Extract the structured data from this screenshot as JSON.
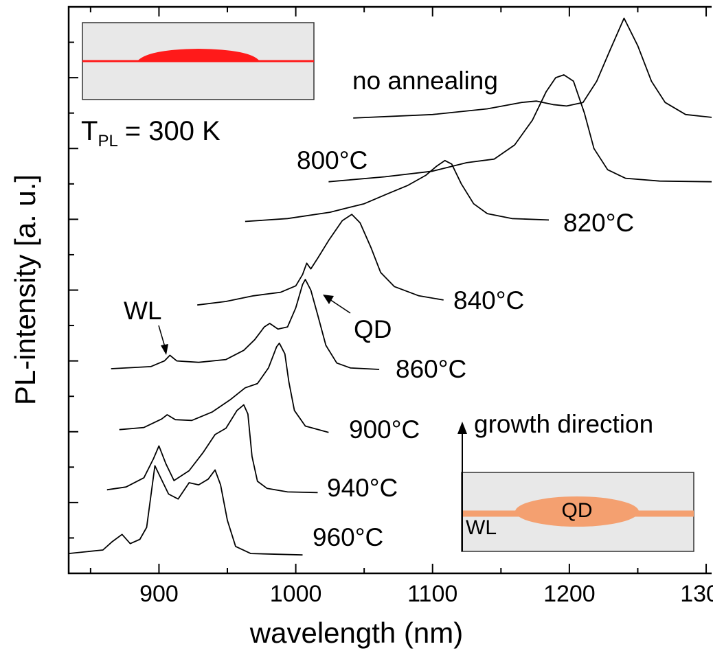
{
  "chart_data": {
    "type": "line",
    "x_label": "wavelength (nm)",
    "y_label": "PL-intensity [a. u.]",
    "xlim": [
      834,
      1304
    ],
    "ylim": [
      0,
      8
    ],
    "xticks": [
      900,
      1000,
      1100,
      1200,
      1300
    ],
    "xminor_ticks": [
      850,
      950,
      1050,
      1150,
      1250
    ],
    "yticks_unlabeled": [
      0,
      1,
      2,
      3,
      4,
      5,
      6,
      7,
      8
    ],
    "yminor_ticks": [
      0.5,
      1.5,
      2.5,
      3.5,
      4.5,
      5.5,
      6.5,
      7.5
    ],
    "line_color": "#000000",
    "series": [
      {
        "name": "no annealing",
        "x": [
          1042,
          1100,
          1140,
          1165,
          1176,
          1188,
          1198,
          1210,
          1220,
          1230,
          1240,
          1250,
          1260,
          1270,
          1285,
          1304
        ],
        "values": [
          6.43,
          6.48,
          6.56,
          6.65,
          6.67,
          6.62,
          6.6,
          6.65,
          6.95,
          7.4,
          7.84,
          7.45,
          6.95,
          6.65,
          6.48,
          6.44
        ]
      },
      {
        "name": "800°C",
        "x": [
          1024,
          1065,
          1100,
          1125,
          1145,
          1160,
          1173,
          1183,
          1190,
          1196,
          1203,
          1211,
          1218,
          1228,
          1241,
          1266,
          1304
        ],
        "values": [
          5.53,
          5.6,
          5.68,
          5.8,
          5.85,
          6.05,
          6.4,
          6.8,
          7.0,
          7.04,
          6.95,
          6.5,
          6.0,
          5.7,
          5.58,
          5.54,
          5.53
        ]
      },
      {
        "name": "820°C",
        "x": [
          963,
          994,
          1025,
          1050,
          1067,
          1082,
          1095,
          1103,
          1109,
          1114,
          1121,
          1130,
          1140,
          1158,
          1185
        ],
        "values": [
          4.97,
          5.01,
          5.1,
          5.22,
          5.36,
          5.48,
          5.62,
          5.75,
          5.83,
          5.78,
          5.5,
          5.22,
          5.08,
          5.01,
          4.99
        ]
      },
      {
        "name": "840°C",
        "x": [
          928,
          949,
          969,
          989,
          1000,
          1005,
          1008,
          1011,
          1016,
          1024,
          1034,
          1041,
          1047,
          1055,
          1062,
          1072,
          1090,
          1108
        ],
        "values": [
          3.79,
          3.84,
          3.92,
          3.97,
          4.06,
          4.22,
          4.38,
          4.3,
          4.45,
          4.7,
          4.98,
          5.07,
          4.95,
          4.6,
          4.25,
          4.05,
          3.92,
          3.86
        ]
      },
      {
        "name": "860°C",
        "x": [
          865,
          894,
          904,
          908,
          913,
          929,
          949,
          962,
          970,
          977,
          981,
          987,
          994,
          1000,
          1005,
          1007,
          1011,
          1016,
          1022,
          1030,
          1040,
          1061
        ],
        "values": [
          2.89,
          2.92,
          3.0,
          3.08,
          3.0,
          2.98,
          3.02,
          3.15,
          3.3,
          3.48,
          3.53,
          3.45,
          3.48,
          3.75,
          4.08,
          4.15,
          4.0,
          3.65,
          3.22,
          2.97,
          2.9,
          2.88
        ]
      },
      {
        "name": "900°C",
        "x": [
          871,
          889,
          902,
          906,
          912,
          924,
          939,
          952,
          963,
          972,
          980,
          986,
          988,
          992,
          995,
          999,
          1007,
          1024
        ],
        "values": [
          2.03,
          2.06,
          2.18,
          2.24,
          2.17,
          2.16,
          2.28,
          2.45,
          2.62,
          2.68,
          2.9,
          3.2,
          3.25,
          3.1,
          2.7,
          2.3,
          2.08,
          1.99
        ]
      },
      {
        "name": "940°C",
        "x": [
          862,
          876,
          889,
          896,
          900,
          905,
          911,
          922,
          932,
          941,
          949,
          957,
          962,
          965,
          968,
          972,
          979,
          994,
          1016
        ],
        "values": [
          1.18,
          1.22,
          1.35,
          1.62,
          1.8,
          1.55,
          1.31,
          1.45,
          1.7,
          1.96,
          2.05,
          2.3,
          2.38,
          2.25,
          1.65,
          1.3,
          1.2,
          1.15,
          1.14
        ]
      },
      {
        "name": "960°C",
        "x": [
          834,
          859,
          866,
          873,
          879,
          886,
          891,
          897,
          900,
          907,
          914,
          922,
          929,
          936,
          941,
          945,
          950,
          956,
          967,
          1005
        ],
        "values": [
          0.28,
          0.33,
          0.45,
          0.55,
          0.42,
          0.48,
          0.65,
          1.52,
          1.4,
          1.12,
          1.05,
          1.28,
          1.25,
          1.33,
          1.46,
          1.25,
          0.75,
          0.38,
          0.28,
          0.26
        ]
      }
    ],
    "annotations": {
      "wl_arrow": "WL",
      "qd_arrow": "QD",
      "temperature": {
        "symbol": "T",
        "subscript": "PL",
        "value": "= 300 K"
      },
      "inset": {
        "dot": "QD",
        "layer": "WL",
        "direction": "growth direction"
      }
    }
  }
}
